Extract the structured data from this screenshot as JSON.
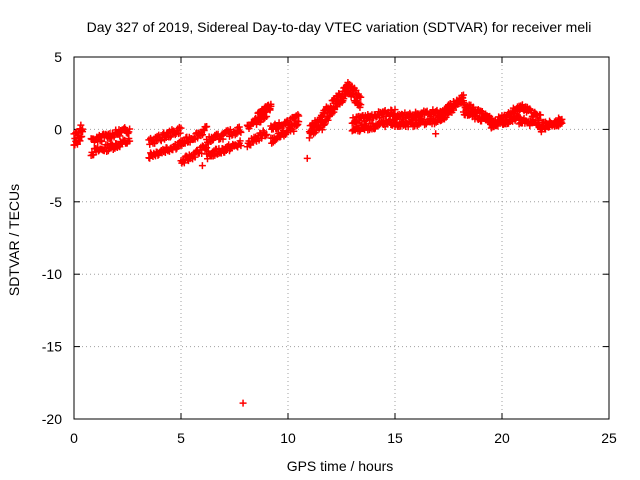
{
  "chart_data": {
    "type": "scatter",
    "title": "Day 327 of 2019, Sidereal Day-to-day VTEC variation (SDTVAR) for receiver meli",
    "xlabel": "GPS time / hours",
    "ylabel": "SDTVAR / TECUs",
    "xlim": [
      0,
      25
    ],
    "ylim": [
      -20,
      5
    ],
    "x_ticks": [
      0,
      5,
      10,
      15,
      20,
      25
    ],
    "y_ticks": [
      -20,
      -15,
      -10,
      -5,
      0,
      5
    ],
    "grid": true,
    "marker": "+",
    "color": "#ff0000",
    "series": [
      {
        "name": "SDTVAR",
        "segments": [
          {
            "x0": 0.0,
            "x1": 0.4,
            "y": [
              [
                -1.2,
                -0.3
              ],
              [
                -0.5,
                0.2
              ]
            ]
          },
          {
            "x0": 0.8,
            "x1": 2.6,
            "y": [
              [
                -1.6,
                -0.8
              ],
              [
                -0.8,
                0.0
              ]
            ]
          },
          {
            "x0": 3.5,
            "x1": 5.0,
            "y": [
              [
                -1.8,
                -1.0
              ],
              [
                -0.9,
                0.0
              ]
            ]
          },
          {
            "x0": 5.0,
            "x1": 6.2,
            "y": [
              [
                -2.3,
                -1.2
              ],
              [
                -1.0,
                0.0
              ]
            ]
          },
          {
            "x0": 6.2,
            "x1": 7.8,
            "y": [
              [
                -1.8,
                -1.0
              ],
              [
                -0.8,
                0.0
              ]
            ]
          },
          {
            "x0": 8.1,
            "x1": 9.0,
            "y": [
              [
                -1.0,
                -0.2
              ],
              [
                0.2,
                1.0
              ]
            ]
          },
          {
            "x0": 8.6,
            "x1": 9.2,
            "y": [
              [
                1.0,
                1.6
              ],
              [
                1.0,
                1.6
              ]
            ]
          },
          {
            "x0": 9.2,
            "x1": 10.5,
            "y": [
              [
                -0.8,
                0.3
              ],
              [
                0.0,
                0.8
              ]
            ]
          },
          {
            "x0": 11.0,
            "x1": 11.6,
            "y": [
              [
                -0.5,
                0.5
              ],
              [
                0.0,
                1.0
              ]
            ]
          },
          {
            "x0": 11.6,
            "x1": 12.8,
            "y": [
              [
                0.2,
                2.6
              ],
              [
                1.0,
                3.0
              ]
            ]
          },
          {
            "x0": 12.8,
            "x1": 13.4,
            "y": [
              [
                2.8,
                1.5
              ],
              [
                3.2,
                2.0
              ]
            ]
          },
          {
            "x0": 13.0,
            "x1": 15.0,
            "y": [
              [
                0.0,
                0.5
              ],
              [
                0.6,
                1.2
              ]
            ]
          },
          {
            "x0": 15.0,
            "x1": 17.0,
            "y": [
              [
                0.3,
                0.6
              ],
              [
                0.8,
                1.2
              ]
            ]
          },
          {
            "x0": 17.0,
            "x1": 18.2,
            "y": [
              [
                0.6,
                2.0
              ],
              [
                1.0,
                2.2
              ]
            ]
          },
          {
            "x0": 18.2,
            "x1": 19.5,
            "y": [
              [
                1.8,
                0.6
              ],
              [
                1.2,
                0.5
              ]
            ]
          },
          {
            "x0": 19.5,
            "x1": 20.8,
            "y": [
              [
                0.4,
                1.5
              ],
              [
                0.2,
                0.8
              ]
            ]
          },
          {
            "x0": 20.8,
            "x1": 21.8,
            "y": [
              [
                1.6,
                0.8
              ],
              [
                0.6,
                0.2
              ]
            ]
          },
          {
            "x0": 21.8,
            "x1": 22.8,
            "y": [
              [
                0.0,
                0.5
              ],
              [
                0.2,
                0.6
              ]
            ]
          }
        ],
        "points": [
          {
            "x": 16.9,
            "y": -0.3
          },
          {
            "x": 10.9,
            "y": -2.0
          },
          {
            "x": 6.0,
            "y": -2.5
          },
          {
            "x": 7.9,
            "y": -18.9
          }
        ]
      }
    ]
  }
}
